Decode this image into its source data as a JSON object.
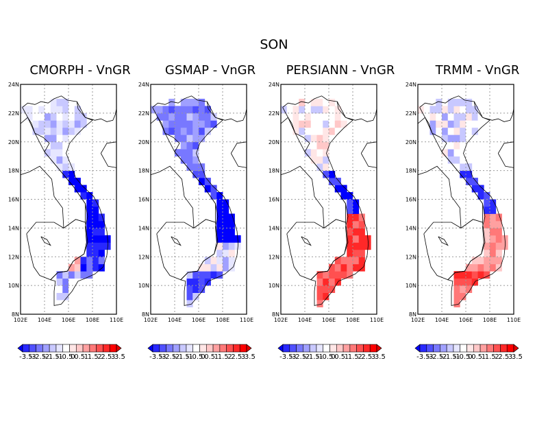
{
  "figure": {
    "title": "SON"
  },
  "panels": [
    {
      "id": "cmorph",
      "title": "CMORPH - VnGR",
      "pattern": "cmorph"
    },
    {
      "id": "gsmap",
      "title": "GSMAP - VnGR",
      "pattern": "gsmap"
    },
    {
      "id": "persiann",
      "title": "PERSIANN - VnGR",
      "pattern": "persiann"
    },
    {
      "id": "trmm",
      "title": "TRMM - VnGR",
      "pattern": "trmm"
    }
  ],
  "axes": {
    "lon_ticks": [
      "102E",
      "104E",
      "106E",
      "108E",
      "110E"
    ],
    "lat_ticks": [
      "24N",
      "22N",
      "20N",
      "18N",
      "16N",
      "14N",
      "12N",
      "10N",
      "8N"
    ],
    "lon_range": [
      102,
      110
    ],
    "lat_range": [
      8,
      24
    ],
    "grid": "dotted"
  },
  "colorbar": {
    "labels": [
      "-3.5",
      "-3",
      "-2.5",
      "-2",
      "-1.5",
      "-1",
      "-0.5",
      "0",
      "0.5",
      "1",
      "1.5",
      "2",
      "2.5",
      "3",
      "3.5"
    ],
    "colors": [
      "#0000ff",
      "#2828ff",
      "#5050ff",
      "#7878ff",
      "#a0a0ff",
      "#c8c8ff",
      "#e6e6ff",
      "#ffffff",
      "#ffe6e6",
      "#ffc8c8",
      "#ffa0a0",
      "#ff7878",
      "#ff5050",
      "#ff2828",
      "#ff0000",
      "#e60000"
    ]
  }
}
